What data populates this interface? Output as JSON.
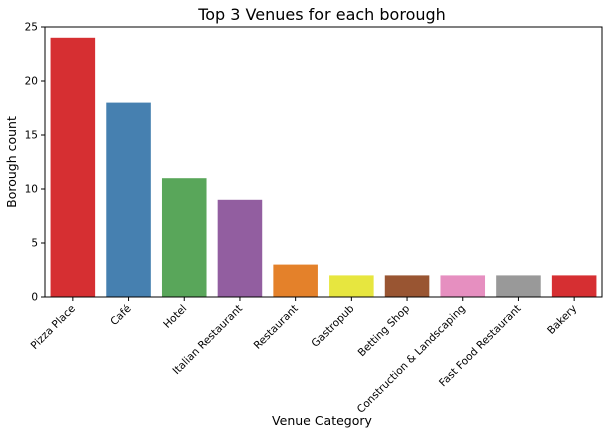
{
  "chart_data": {
    "type": "bar",
    "title": "Top 3 Venues for each borough",
    "xlabel": "Venue Category",
    "ylabel": "Borough count",
    "categories": [
      "Pizza Place",
      "Café",
      "Hotel",
      "Italian Restaurant",
      "Restaurant",
      "Gastropub",
      "Betting Shop",
      "Construction & Landscaping",
      "Fast Food Restaurant",
      "Bakery"
    ],
    "values": [
      24,
      18,
      11,
      9,
      3,
      2,
      2,
      2,
      2,
      2
    ],
    "colors": [
      "#d62f32",
      "#4680b0",
      "#59a65a",
      "#925ea0",
      "#e4812a",
      "#e7e63f",
      "#995532",
      "#e68fc0",
      "#999999",
      "#d62f32"
    ],
    "ylim": [
      0,
      25
    ],
    "yticks": [
      0,
      5,
      10,
      15,
      20,
      25
    ],
    "grid": false,
    "legend": "none"
  }
}
